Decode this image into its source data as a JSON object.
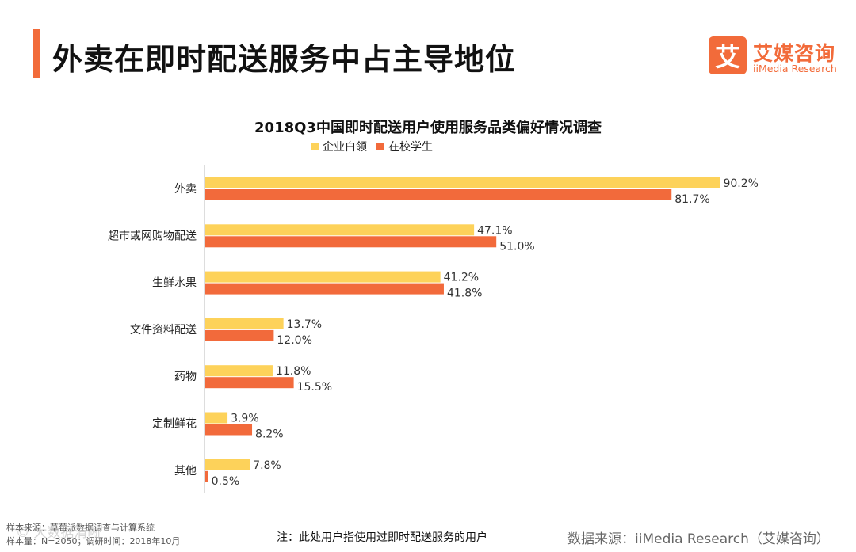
{
  "header": {
    "title": "外卖在即时配送服务中占主导地位",
    "accent_color": "#f26b3a"
  },
  "logo": {
    "mark": "艾",
    "name_cn": "艾媒咨询",
    "name_en": "iiMedia Research",
    "color": "#f26b3a"
  },
  "chart_data": {
    "type": "bar",
    "orientation": "horizontal",
    "title": "2018Q3中国即时配送用户使用服务品类偏好情况调查",
    "categories": [
      "外卖",
      "超市或网购物配送",
      "生鲜水果",
      "文件资料配送",
      "药物",
      "定制鲜花",
      "其他"
    ],
    "series": [
      {
        "name": "企业白领",
        "color": "#fdd25a",
        "values": [
          90.2,
          47.1,
          41.2,
          13.7,
          11.8,
          3.9,
          7.8
        ]
      },
      {
        "name": "在校学生",
        "color": "#f26a3b",
        "values": [
          81.7,
          51.0,
          41.8,
          12.0,
          15.5,
          8.2,
          0.5
        ]
      }
    ],
    "value_suffix": "%",
    "xlim": [
      0,
      100
    ],
    "legend_position": "top",
    "grid": false
  },
  "footer": {
    "sample_source": "样本来源：草莓派数据调查与计算系统",
    "sample_info": "样本量：N=2050；调研时间：2018年10月",
    "note": "注：此处用户指使用过即时配送服务的用户",
    "data_source": "数据来源：iiMedia Research（艾媒咨询）",
    "watermark": "© 大数据清晰"
  }
}
